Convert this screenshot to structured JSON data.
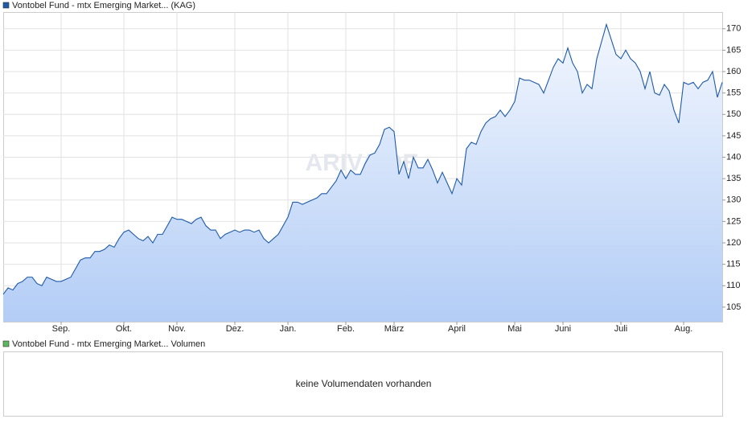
{
  "chart_data": [
    {
      "type": "area",
      "watermark": "ARIVA.DE",
      "series": [
        {
          "name": "Vontobel Fund - mtx Emerging Market... (KAG)",
          "color": "#1e5aa8",
          "values": [
            108,
            109.5,
            109,
            110.5,
            111,
            112,
            112,
            110.5,
            110,
            112,
            111.5,
            111,
            111,
            111.5,
            112,
            114,
            116,
            116.5,
            116.5,
            118,
            118,
            118.5,
            119.5,
            119,
            121,
            122.5,
            123,
            122,
            121,
            120.5,
            121.5,
            120,
            122,
            122,
            124,
            126,
            125.5,
            125.5,
            125,
            124.5,
            125.5,
            126,
            124,
            123,
            123,
            121,
            122,
            122.5,
            123,
            122.5,
            123,
            123,
            122.5,
            123,
            121,
            120,
            121,
            122,
            124,
            126,
            129.5,
            129.5,
            129,
            129.5,
            130,
            130.5,
            131.5,
            131.5,
            133,
            134.5,
            137,
            135,
            137,
            136,
            136,
            138.5,
            140.5,
            141,
            143,
            146.5,
            147,
            146,
            136,
            139,
            135,
            140,
            137.5,
            137.5,
            139.5,
            137,
            134,
            136.5,
            134,
            131.5,
            135,
            133.5,
            142,
            143.5,
            143,
            146,
            148,
            149,
            149.5,
            151,
            149.5,
            151,
            153,
            158.5,
            158,
            158,
            157.5,
            157,
            155,
            158,
            161,
            163,
            162,
            165.5,
            162,
            160,
            155,
            157,
            156,
            163,
            167,
            171,
            167.5,
            164,
            163,
            165,
            163,
            162,
            160,
            156,
            160,
            155,
            154.5,
            157,
            155.5,
            151,
            148,
            157.5,
            157,
            157.5,
            156,
            157.5,
            158,
            160,
            154,
            157.5
          ]
        }
      ],
      "categories": [
        null,
        null,
        null,
        null,
        null,
        null,
        null,
        null,
        null,
        null,
        null,
        null,
        "Sep.",
        null,
        null,
        null,
        null,
        null,
        null,
        null,
        null,
        null,
        null,
        null,
        null,
        "Okt.",
        null,
        null,
        null,
        null,
        null,
        null,
        null,
        null,
        null,
        null,
        "Nov.",
        null,
        null,
        null,
        null,
        null,
        null,
        null,
        null,
        null,
        null,
        null,
        "Dez.",
        null,
        null,
        null,
        null,
        null,
        null,
        null,
        null,
        null,
        null,
        "Jan.",
        null,
        null,
        null,
        null,
        null,
        null,
        null,
        null,
        null,
        null,
        null,
        "Feb.",
        null,
        null,
        null,
        null,
        null,
        null,
        null,
        null,
        null,
        "März",
        null,
        null,
        null,
        null,
        null,
        null,
        null,
        null,
        null,
        null,
        null,
        null,
        "April",
        null,
        null,
        null,
        null,
        null,
        null,
        null,
        null,
        null,
        null,
        null,
        "Mai",
        null,
        null,
        null,
        null,
        null,
        null,
        null,
        null,
        null,
        "Juni",
        null,
        null,
        null,
        null,
        null,
        null,
        null,
        null,
        null,
        null,
        null,
        "Juli",
        null,
        null,
        null,
        null,
        null,
        null,
        null,
        null,
        null,
        null,
        null,
        null,
        "Aug.",
        null,
        null,
        null,
        null,
        null,
        null,
        null,
        null
      ],
      "ylim": [
        101.6,
        173.9
      ],
      "yticks": [
        105,
        110,
        115,
        120,
        125,
        130,
        135,
        140,
        145,
        150,
        155,
        160,
        165,
        170
      ],
      "grid": true
    },
    {
      "type": "bar",
      "series": [
        {
          "name": "Vontobel Fund - mtx Emerging Market... Volumen",
          "color": "#5cb85c",
          "values": []
        }
      ],
      "message": "keine Volumendaten vorhanden"
    }
  ]
}
